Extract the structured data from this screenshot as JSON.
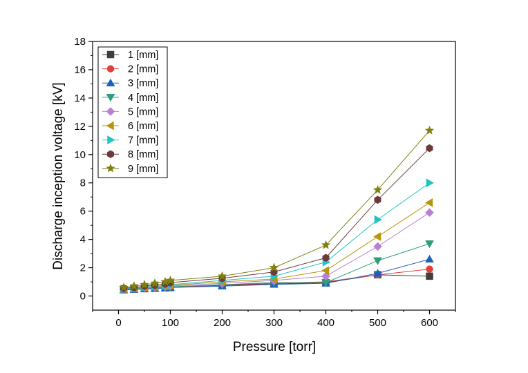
{
  "chart_data": {
    "type": "line",
    "title": "",
    "xlabel": "Pressure [torr]",
    "ylabel": "Discharge inception voltage [kV]",
    "xlim": [
      -50,
      650
    ],
    "ylim": [
      -1,
      18
    ],
    "xticks": [
      0,
      100,
      200,
      300,
      400,
      500,
      600
    ],
    "yticks": [
      0,
      2,
      4,
      6,
      8,
      10,
      12,
      14,
      16,
      18
    ],
    "grid": false,
    "legend_position": "top-left",
    "x": [
      10,
      30,
      50,
      70,
      90,
      100,
      200,
      300,
      400,
      500,
      600
    ],
    "series": [
      {
        "name": "1 [mm]",
        "marker": "square",
        "color": "#3f3f3f",
        "values": [
          0.45,
          0.5,
          0.52,
          0.55,
          0.58,
          0.6,
          0.75,
          0.85,
          0.95,
          1.5,
          1.4
        ]
      },
      {
        "name": "2 [mm]",
        "marker": "circle",
        "color": "#e0403a",
        "values": [
          0.45,
          0.5,
          0.53,
          0.56,
          0.6,
          0.62,
          0.78,
          0.9,
          1.0,
          1.5,
          1.9
        ]
      },
      {
        "name": "3 [mm]",
        "marker": "triangle-up",
        "color": "#1f5fbf",
        "values": [
          0.42,
          0.46,
          0.5,
          0.52,
          0.56,
          0.6,
          0.7,
          0.82,
          0.9,
          1.6,
          2.6
        ]
      },
      {
        "name": "4 [mm]",
        "marker": "triangle-down",
        "color": "#2e9e7a",
        "values": [
          0.45,
          0.52,
          0.55,
          0.6,
          0.62,
          0.65,
          0.8,
          0.95,
          0.95,
          2.5,
          3.7
        ]
      },
      {
        "name": "5 [mm]",
        "marker": "diamond",
        "color": "#b87fd6",
        "values": [
          0.5,
          0.55,
          0.6,
          0.62,
          0.66,
          0.7,
          0.9,
          1.1,
          1.4,
          3.5,
          5.9
        ]
      },
      {
        "name": "6 [mm]",
        "marker": "triangle-left",
        "color": "#b8960b",
        "values": [
          0.5,
          0.55,
          0.6,
          0.65,
          0.7,
          0.75,
          1.0,
          1.2,
          1.8,
          4.2,
          6.6
        ]
      },
      {
        "name": "7 [mm]",
        "marker": "triangle-right",
        "color": "#1fc4c4",
        "values": [
          0.5,
          0.55,
          0.62,
          0.68,
          0.75,
          0.8,
          1.1,
          1.4,
          2.4,
          5.4,
          8.0
        ]
      },
      {
        "name": "8 [mm]",
        "marker": "hexagon",
        "color": "#6b3a3a",
        "values": [
          0.55,
          0.6,
          0.7,
          0.75,
          0.85,
          0.95,
          1.25,
          1.7,
          2.7,
          6.8,
          10.45
        ]
      },
      {
        "name": "9 [mm]",
        "marker": "star",
        "color": "#808010",
        "values": [
          0.6,
          0.7,
          0.8,
          0.9,
          1.0,
          1.1,
          1.4,
          2.0,
          3.6,
          7.5,
          11.7
        ]
      }
    ]
  }
}
